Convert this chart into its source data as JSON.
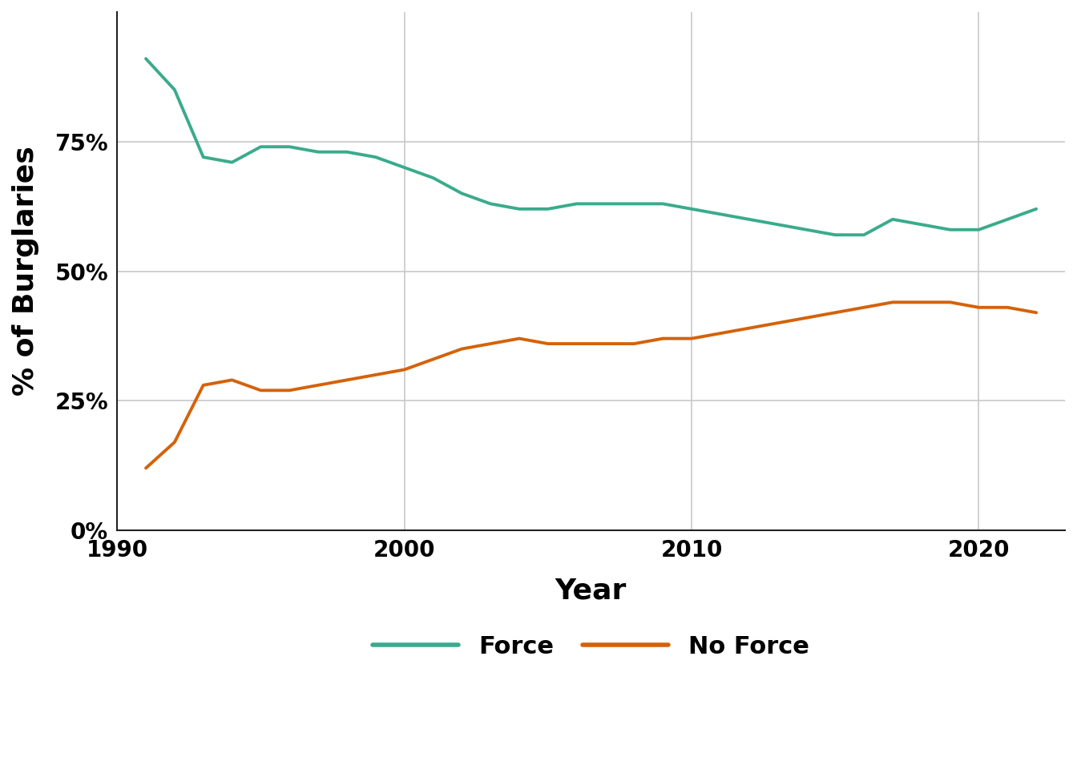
{
  "years": [
    1991,
    1992,
    1993,
    1994,
    1995,
    1996,
    1997,
    1998,
    1999,
    2000,
    2001,
    2002,
    2003,
    2004,
    2005,
    2006,
    2007,
    2008,
    2009,
    2010,
    2011,
    2012,
    2013,
    2014,
    2015,
    2016,
    2017,
    2018,
    2019,
    2020,
    2021,
    2022
  ],
  "force": [
    91,
    85,
    72,
    71,
    74,
    74,
    73,
    73,
    72,
    70,
    68,
    65,
    63,
    62,
    62,
    63,
    63,
    63,
    63,
    62,
    61,
    60,
    59,
    58,
    57,
    57,
    60,
    59,
    58,
    58,
    60,
    62
  ],
  "no_force": [
    12,
    17,
    28,
    29,
    27,
    27,
    28,
    29,
    30,
    31,
    33,
    35,
    36,
    37,
    36,
    36,
    36,
    36,
    37,
    37,
    38,
    39,
    40,
    41,
    42,
    43,
    44,
    44,
    44,
    43,
    43,
    42
  ],
  "force_color": "#3aab8c",
  "no_force_color": "#d4620a",
  "line_width": 2.8,
  "xlabel": "Year",
  "ylabel": "% of Burglaries",
  "ylim": [
    0,
    100
  ],
  "yticks": [
    0,
    25,
    50,
    75
  ],
  "ytick_labels": [
    "0%",
    "25%",
    "50%",
    "75%"
  ],
  "xlim": [
    1990,
    2023
  ],
  "xticks": [
    1990,
    2000,
    2010,
    2020
  ],
  "legend_entries": [
    "Force",
    "No Force"
  ],
  "background_color": "#ffffff",
  "grid_color": "#c8c8c8"
}
